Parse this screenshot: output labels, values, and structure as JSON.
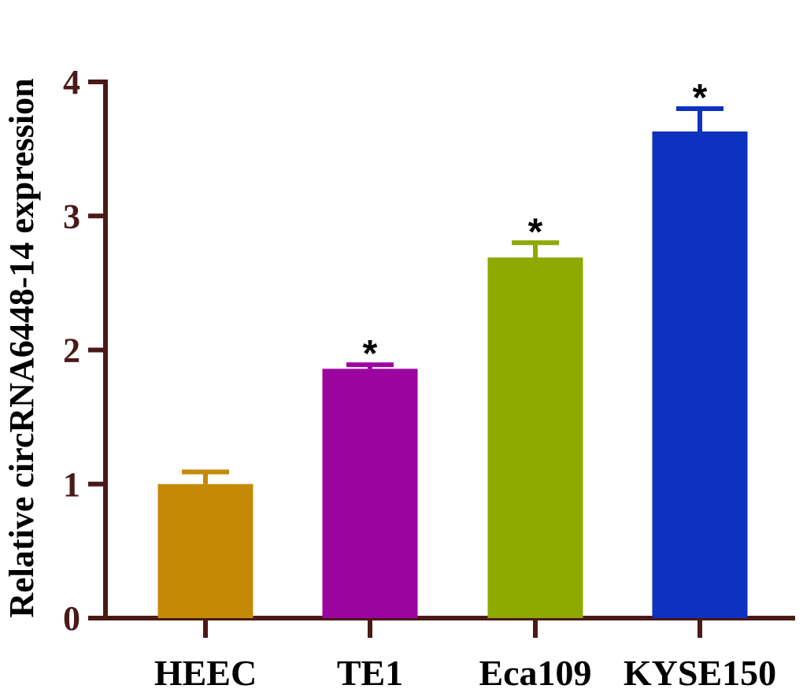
{
  "chart_data": {
    "type": "bar",
    "title": "",
    "xlabel": "",
    "ylabel": "Relative circRNA6448-14 expression",
    "ylim": [
      0,
      4
    ],
    "yticks": [
      "0",
      "1",
      "2",
      "3",
      "4"
    ],
    "categories": [
      "HEEC",
      "TE1",
      "Eca109",
      "KYSE150"
    ],
    "values": [
      1.0,
      1.86,
      2.69,
      3.63
    ],
    "errors": [
      0.09,
      0.03,
      0.11,
      0.17
    ],
    "significance": [
      "",
      "*",
      "*",
      "*"
    ],
    "colors": [
      "#c58a05",
      "#9c04a0",
      "#8ea902",
      "#0d31c1"
    ],
    "axis_color": "#4a1a17"
  }
}
